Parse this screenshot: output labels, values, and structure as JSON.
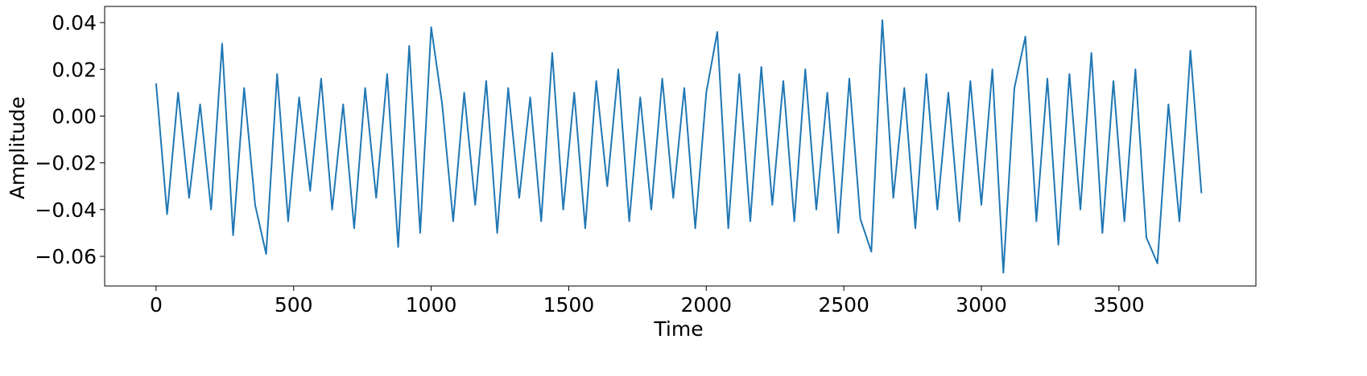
{
  "chart_data": {
    "type": "line",
    "xlabel": "Time",
    "ylabel": "Amplitude",
    "xlim": [
      -187,
      3998
    ],
    "ylim": [
      -0.0727,
      0.0469
    ],
    "xticks": [
      0,
      500,
      1000,
      1500,
      2000,
      2500,
      3000,
      3500
    ],
    "yticks": [
      {
        "value": -0.06,
        "label": "−0.06"
      },
      {
        "value": -0.04,
        "label": "−0.04"
      },
      {
        "value": -0.02,
        "label": "−0.02"
      },
      {
        "value": 0,
        "label": "0.00"
      },
      {
        "value": 0.02,
        "label": "0.02"
      },
      {
        "value": 0.04,
        "label": "0.04"
      }
    ],
    "grid": false,
    "x": [
      0,
      40,
      80,
      120,
      160,
      200,
      240,
      280,
      320,
      360,
      400,
      440,
      480,
      520,
      560,
      600,
      640,
      680,
      720,
      760,
      800,
      840,
      880,
      920,
      960,
      1000,
      1040,
      1080,
      1120,
      1160,
      1200,
      1240,
      1280,
      1320,
      1360,
      1400,
      1440,
      1480,
      1520,
      1560,
      1600,
      1640,
      1680,
      1720,
      1760,
      1800,
      1840,
      1880,
      1920,
      1960,
      2000,
      2040,
      2080,
      2120,
      2160,
      2200,
      2240,
      2280,
      2320,
      2360,
      2400,
      2440,
      2480,
      2520,
      2560,
      2600,
      2640,
      2680,
      2720,
      2760,
      2800,
      2840,
      2880,
      2920,
      2960,
      3000,
      3040,
      3080,
      3120,
      3160,
      3200,
      3240,
      3280,
      3320,
      3360,
      3400,
      3440,
      3480,
      3520,
      3560,
      3600,
      3640,
      3680,
      3720,
      3760,
      3800
    ],
    "series": [
      {
        "color": "#1f77b4",
        "values": [
          0.014,
          -0.042,
          0.01,
          -0.035,
          0.005,
          -0.04,
          0.031,
          -0.051,
          0.012,
          -0.038,
          -0.059,
          0.018,
          -0.045,
          0.008,
          -0.032,
          0.016,
          -0.04,
          0.005,
          -0.048,
          0.012,
          -0.035,
          0.018,
          -0.056,
          0.03,
          -0.05,
          0.038,
          0.005,
          -0.045,
          0.01,
          -0.038,
          0.015,
          -0.05,
          0.012,
          -0.035,
          0.008,
          -0.045,
          0.027,
          -0.04,
          0.01,
          -0.048,
          0.015,
          -0.03,
          0.02,
          -0.045,
          0.008,
          -0.04,
          0.016,
          -0.035,
          0.012,
          -0.048,
          0.01,
          0.036,
          -0.048,
          0.018,
          -0.045,
          0.021,
          -0.038,
          0.015,
          -0.045,
          0.02,
          -0.04,
          0.01,
          -0.05,
          0.016,
          -0.044,
          -0.058,
          0.041,
          -0.035,
          0.012,
          -0.048,
          0.018,
          -0.04,
          0.01,
          -0.045,
          0.015,
          -0.038,
          0.02,
          -0.067,
          0.012,
          0.034,
          -0.045,
          0.016,
          -0.055,
          0.018,
          -0.04,
          0.027,
          -0.05,
          0.015,
          -0.045,
          0.02,
          -0.052,
          -0.063,
          0.005,
          -0.045,
          0.028,
          -0.033
        ]
      }
    ]
  }
}
